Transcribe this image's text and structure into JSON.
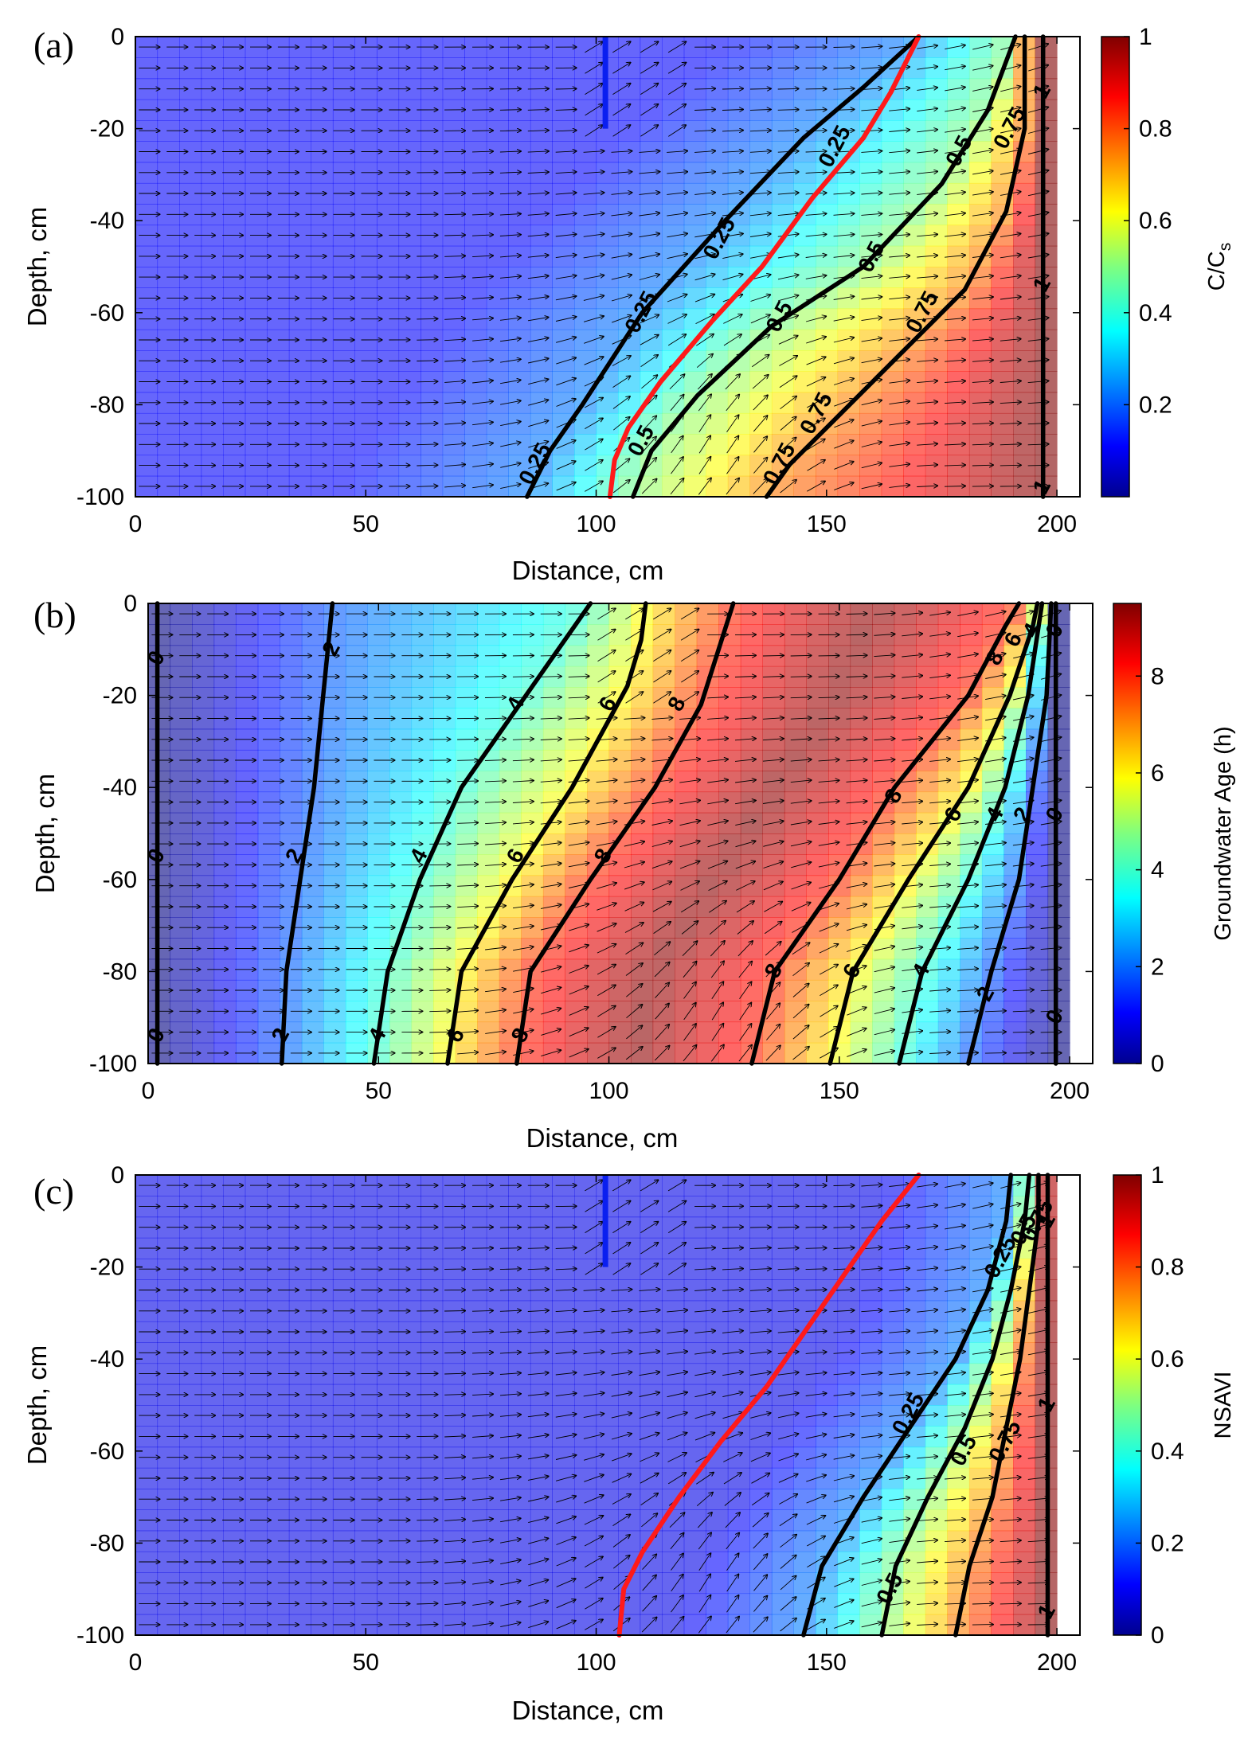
{
  "figure": {
    "panels": [
      {
        "id": "a",
        "letter": "(a)"
      },
      {
        "id": "b",
        "letter": "(b)"
      },
      {
        "id": "c",
        "letter": "(c)"
      }
    ]
  },
  "chart_data": [
    {
      "type": "heatmap",
      "panel": "(a)",
      "xlabel": "Distance, cm",
      "ylabel": "Depth, cm",
      "xlim": [
        0,
        205
      ],
      "ylim": [
        -100,
        0
      ],
      "xticks": [
        0,
        50,
        100,
        150,
        200
      ],
      "yticks": [
        0,
        -20,
        -40,
        -60,
        -80,
        -100
      ],
      "colorbar": {
        "label": "C/C_s",
        "label_main": "C/C",
        "label_sub": "s",
        "min": 0,
        "max": 1,
        "ticks": [
          0.2,
          0.4,
          0.6,
          0.8,
          1
        ],
        "colormap": "jet"
      },
      "grid": false,
      "vector_field": true,
      "contours": [
        {
          "level": 0.25,
          "points": [
            [
              85,
              -100
            ],
            [
              90,
              -90
            ],
            [
              97,
              -80
            ],
            [
              110,
              -60
            ],
            [
              128,
              -40
            ],
            [
              145,
              -22
            ],
            [
              158,
              -11
            ],
            [
              170,
              0
            ]
          ],
          "labels": [
            [
              87,
              -93
            ],
            [
              110,
              -60
            ],
            [
              127,
              -44
            ],
            [
              152,
              -24
            ]
          ],
          "label_text": [
            "0.25",
            "0.25",
            "0.25",
            "0.25"
          ]
        },
        {
          "level": 0.5,
          "points": [
            [
              108,
              -100
            ],
            [
              112,
              -90
            ],
            [
              122,
              -78
            ],
            [
              138,
              -63
            ],
            [
              158,
              -50
            ],
            [
              175,
              -32
            ],
            [
              185,
              -16
            ],
            [
              191,
              0
            ]
          ],
          "labels": [
            [
              110,
              -88
            ],
            [
              140,
              -61
            ],
            [
              160,
              -48
            ],
            [
              179,
              -25
            ]
          ],
          "label_text": [
            "0.5",
            "0.5",
            "0.5",
            "0.5"
          ]
        },
        {
          "level": 0.75,
          "points": [
            [
              137,
              -100
            ],
            [
              142,
              -93
            ],
            [
              153,
              -82
            ],
            [
              167,
              -68
            ],
            [
              180,
              -55
            ],
            [
              189,
              -38
            ],
            [
              193,
              -20
            ],
            [
              193,
              0
            ]
          ],
          "labels": [
            [
              140,
              -93
            ],
            [
              148,
              -82
            ],
            [
              171,
              -60
            ],
            [
              190,
              -20
            ]
          ],
          "label_text": [
            "0.75",
            "0.75",
            "0.75",
            "0.75"
          ]
        },
        {
          "level": 1,
          "points": [
            [
              197,
              -100
            ],
            [
              197,
              -50
            ],
            [
              197,
              -10
            ],
            [
              197,
              0
            ]
          ],
          "labels": [
            [
              197,
              -98
            ],
            [
              197,
              -54
            ],
            [
              197,
              -12
            ]
          ],
          "label_text": [
            "1",
            "1",
            "1"
          ]
        }
      ],
      "red_line": [
        [
          103,
          -100
        ],
        [
          104,
          -92
        ],
        [
          107,
          -85
        ],
        [
          114,
          -75
        ],
        [
          125,
          -62
        ],
        [
          136,
          -50
        ],
        [
          147,
          -35
        ],
        [
          158,
          -22
        ],
        [
          164,
          -12
        ],
        [
          170,
          0
        ]
      ],
      "blue_line": [
        [
          102,
          0
        ],
        [
          102,
          -20
        ]
      ]
    },
    {
      "type": "heatmap",
      "panel": "(b)",
      "xlabel": "Distance, cm",
      "ylabel": "Depth, cm",
      "xlim": [
        0,
        205
      ],
      "ylim": [
        -100,
        0
      ],
      "xticks": [
        0,
        50,
        100,
        150,
        200
      ],
      "yticks": [
        0,
        -20,
        -40,
        -60,
        -80,
        -100
      ],
      "colorbar": {
        "label": "Groundwater Age (h)",
        "min": 0,
        "max": 9.5,
        "ticks": [
          0,
          2,
          4,
          6,
          8
        ],
        "colormap": "jet"
      },
      "grid": false,
      "vector_field": true,
      "contours": [
        {
          "level": 0,
          "points": [
            [
              2,
              -100
            ],
            [
              2,
              0
            ]
          ],
          "labels": [
            [
              2,
              -94
            ],
            [
              2,
              -55
            ],
            [
              2,
              -12
            ]
          ],
          "label_text": [
            "0",
            "0",
            "0"
          ]
        },
        {
          "level": 2,
          "points": [
            [
              29,
              -100
            ],
            [
              30,
              -80
            ],
            [
              33,
              -60
            ],
            [
              36,
              -40
            ],
            [
              38,
              -20
            ],
            [
              40,
              0
            ]
          ],
          "labels": [
            [
              29,
              -94
            ],
            [
              32,
              -55
            ],
            [
              40,
              -10
            ]
          ],
          "label_text": [
            "2",
            "2",
            "2"
          ]
        },
        {
          "level": 4,
          "points": [
            [
              49,
              -100
            ],
            [
              52,
              -80
            ],
            [
              59,
              -60
            ],
            [
              68,
              -40
            ],
            [
              82,
              -20
            ],
            [
              96,
              0
            ]
          ],
          "labels": [
            [
              50,
              -94
            ],
            [
              59,
              -55
            ],
            [
              80,
              -22
            ]
          ],
          "label_text": [
            "4",
            "4",
            "4"
          ]
        },
        {
          "level": 6,
          "points": [
            [
              65,
              -100
            ],
            [
              68,
              -80
            ],
            [
              79,
              -60
            ],
            [
              92,
              -40
            ],
            [
              104,
              -18
            ],
            [
              107,
              -8
            ],
            [
              108,
              0
            ]
          ],
          "labels": [
            [
              67,
              -94
            ],
            [
              80,
              -55
            ],
            [
              100,
              -22
            ]
          ],
          "label_text": [
            "6",
            "6",
            "6"
          ]
        },
        {
          "level": 8,
          "points": [
            [
              80,
              -100
            ],
            [
              83,
              -80
            ],
            [
              96,
              -60
            ],
            [
              110,
              -40
            ],
            [
              120,
              -22
            ],
            [
              127,
              0
            ]
          ],
          "labels": [
            [
              81,
              -94
            ],
            [
              99,
              -55
            ],
            [
              115,
              -22
            ]
          ],
          "label_text": [
            "8",
            "8",
            "8"
          ]
        },
        {
          "level": 8,
          "points": [
            [
              131,
              -100
            ],
            [
              136,
              -80
            ],
            [
              150,
              -60
            ],
            [
              162,
              -40
            ],
            [
              178,
              -20
            ],
            [
              186,
              -5
            ],
            [
              189,
              0
            ]
          ],
          "labels": [
            [
              136,
              -80
            ],
            [
              162,
              -42
            ],
            [
              184,
              -12
            ]
          ],
          "label_text": [
            "8",
            "8",
            "8"
          ]
        },
        {
          "level": 6,
          "points": [
            [
              148,
              -100
            ],
            [
              153,
              -80
            ],
            [
              165,
              -60
            ],
            [
              178,
              -40
            ],
            [
              187,
              -20
            ],
            [
              192,
              -5
            ],
            [
              193,
              0
            ]
          ],
          "labels": [
            [
              153,
              -80
            ],
            [
              175,
              -46
            ],
            [
              188,
              -8
            ]
          ],
          "label_text": [
            "6",
            "6",
            "6"
          ]
        },
        {
          "level": 4,
          "points": [
            [
              163,
              -100
            ],
            [
              168,
              -80
            ],
            [
              178,
              -60
            ],
            [
              186,
              -40
            ],
            [
              191,
              -20
            ],
            [
              194,
              0
            ]
          ],
          "labels": [
            [
              168,
              -80
            ],
            [
              184,
              -46
            ],
            [
              192,
              -6
            ]
          ],
          "label_text": [
            "4",
            "4",
            "4"
          ]
        },
        {
          "level": 2,
          "points": [
            [
              178,
              -100
            ],
            [
              183,
              -80
            ],
            [
              189,
              -60
            ],
            [
              192,
              -40
            ],
            [
              195,
              -20
            ],
            [
              196,
              0
            ]
          ],
          "labels": [
            [
              182,
              -85
            ],
            [
              190,
              -46
            ]
          ],
          "label_text": [
            "2",
            "2"
          ]
        },
        {
          "level": 0,
          "points": [
            [
              197,
              -100
            ],
            [
              197,
              0
            ]
          ],
          "labels": [
            [
              197,
              -90
            ],
            [
              197,
              -46
            ],
            [
              197,
              -6
            ]
          ],
          "label_text": [
            "0",
            "0",
            "0"
          ]
        }
      ]
    },
    {
      "type": "heatmap",
      "panel": "(c)",
      "xlabel": "Distance, cm",
      "ylabel": "Depth, cm",
      "xlim": [
        0,
        205
      ],
      "ylim": [
        -100,
        0
      ],
      "xticks": [
        0,
        50,
        100,
        150,
        200
      ],
      "yticks": [
        0,
        -20,
        -40,
        -60,
        -80,
        -100
      ],
      "colorbar": {
        "label": "NSAVI",
        "min": 0,
        "max": 1,
        "ticks": [
          0,
          0.2,
          0.4,
          0.6,
          0.8,
          1
        ],
        "colormap": "jet"
      },
      "grid": false,
      "vector_field": true,
      "contours": [
        {
          "level": 0.25,
          "points": [
            [
              145,
              -100
            ],
            [
              149,
              -85
            ],
            [
              158,
              -70
            ],
            [
              168,
              -55
            ],
            [
              178,
              -40
            ],
            [
              185,
              -25
            ],
            [
              189,
              -10
            ],
            [
              190,
              0
            ]
          ],
          "labels": [
            [
              168,
              -52
            ],
            [
              188,
              -18
            ]
          ],
          "label_text": [
            "0.25",
            "0.25"
          ]
        },
        {
          "level": 0.5,
          "points": [
            [
              162,
              -100
            ],
            [
              165,
              -85
            ],
            [
              172,
              -70
            ],
            [
              180,
              -55
            ],
            [
              186,
              -40
            ],
            [
              190,
              -25
            ],
            [
              193,
              -10
            ],
            [
              194,
              0
            ]
          ],
          "labels": [
            [
              164,
              -90
            ],
            [
              180,
              -60
            ],
            [
              193,
              -12
            ]
          ],
          "label_text": [
            "0.5",
            "0.5",
            "0.5"
          ]
        },
        {
          "level": 0.75,
          "points": [
            [
              178,
              -100
            ],
            [
              181,
              -85
            ],
            [
              186,
              -70
            ],
            [
              189,
              -55
            ],
            [
              192,
              -40
            ],
            [
              194,
              -25
            ],
            [
              196,
              -10
            ],
            [
              196,
              0
            ]
          ],
          "labels": [
            [
              189,
              -58
            ],
            [
              196,
              -10
            ]
          ],
          "label_text": [
            "0.75",
            "0.75"
          ]
        },
        {
          "level": 1,
          "points": [
            [
              198,
              -100
            ],
            [
              198,
              0
            ]
          ],
          "labels": [
            [
              198,
              -95
            ],
            [
              198,
              -50
            ],
            [
              198,
              -10
            ]
          ],
          "label_text": [
            "1",
            "1",
            "1"
          ]
        }
      ],
      "red_line": [
        [
          105,
          -100
        ],
        [
          106,
          -90
        ],
        [
          110,
          -82
        ],
        [
          118,
          -70
        ],
        [
          127,
          -58
        ],
        [
          137,
          -46
        ],
        [
          146,
          -33
        ],
        [
          155,
          -20
        ],
        [
          162,
          -10
        ],
        [
          170,
          0
        ]
      ],
      "blue_line": [
        [
          102,
          0
        ],
        [
          102,
          -20
        ]
      ]
    }
  ]
}
